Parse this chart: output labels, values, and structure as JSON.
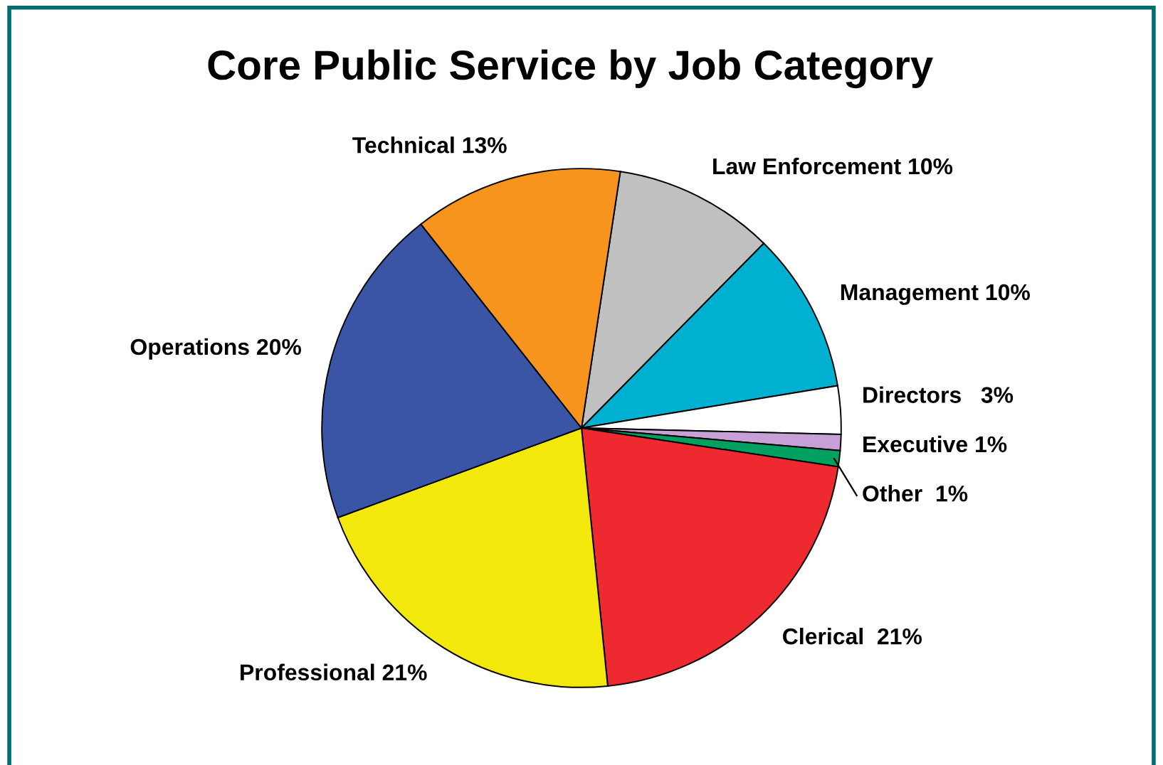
{
  "chart_data": {
    "type": "pie",
    "title": "Core Public Service by Job Category",
    "categories": [
      "Law Enforcement",
      "Management",
      "Directors",
      "Executive",
      "Other",
      "Clerical",
      "Professional",
      "Operations",
      "Technical"
    ],
    "values": [
      10,
      10,
      3,
      1,
      1,
      21,
      21,
      20,
      13
    ],
    "value_labels": [
      "10%",
      "10%",
      "  3%",
      "1%",
      " 1%",
      " 21%",
      "21%",
      "20%",
      "13%"
    ],
    "colors": [
      "#c0c0c0",
      "#00b0d0",
      "#ffffff",
      "#c8a0d8",
      "#00a060",
      "#ee2a30",
      "#f2e80c",
      "#3a55a5",
      "#f7941d"
    ]
  }
}
